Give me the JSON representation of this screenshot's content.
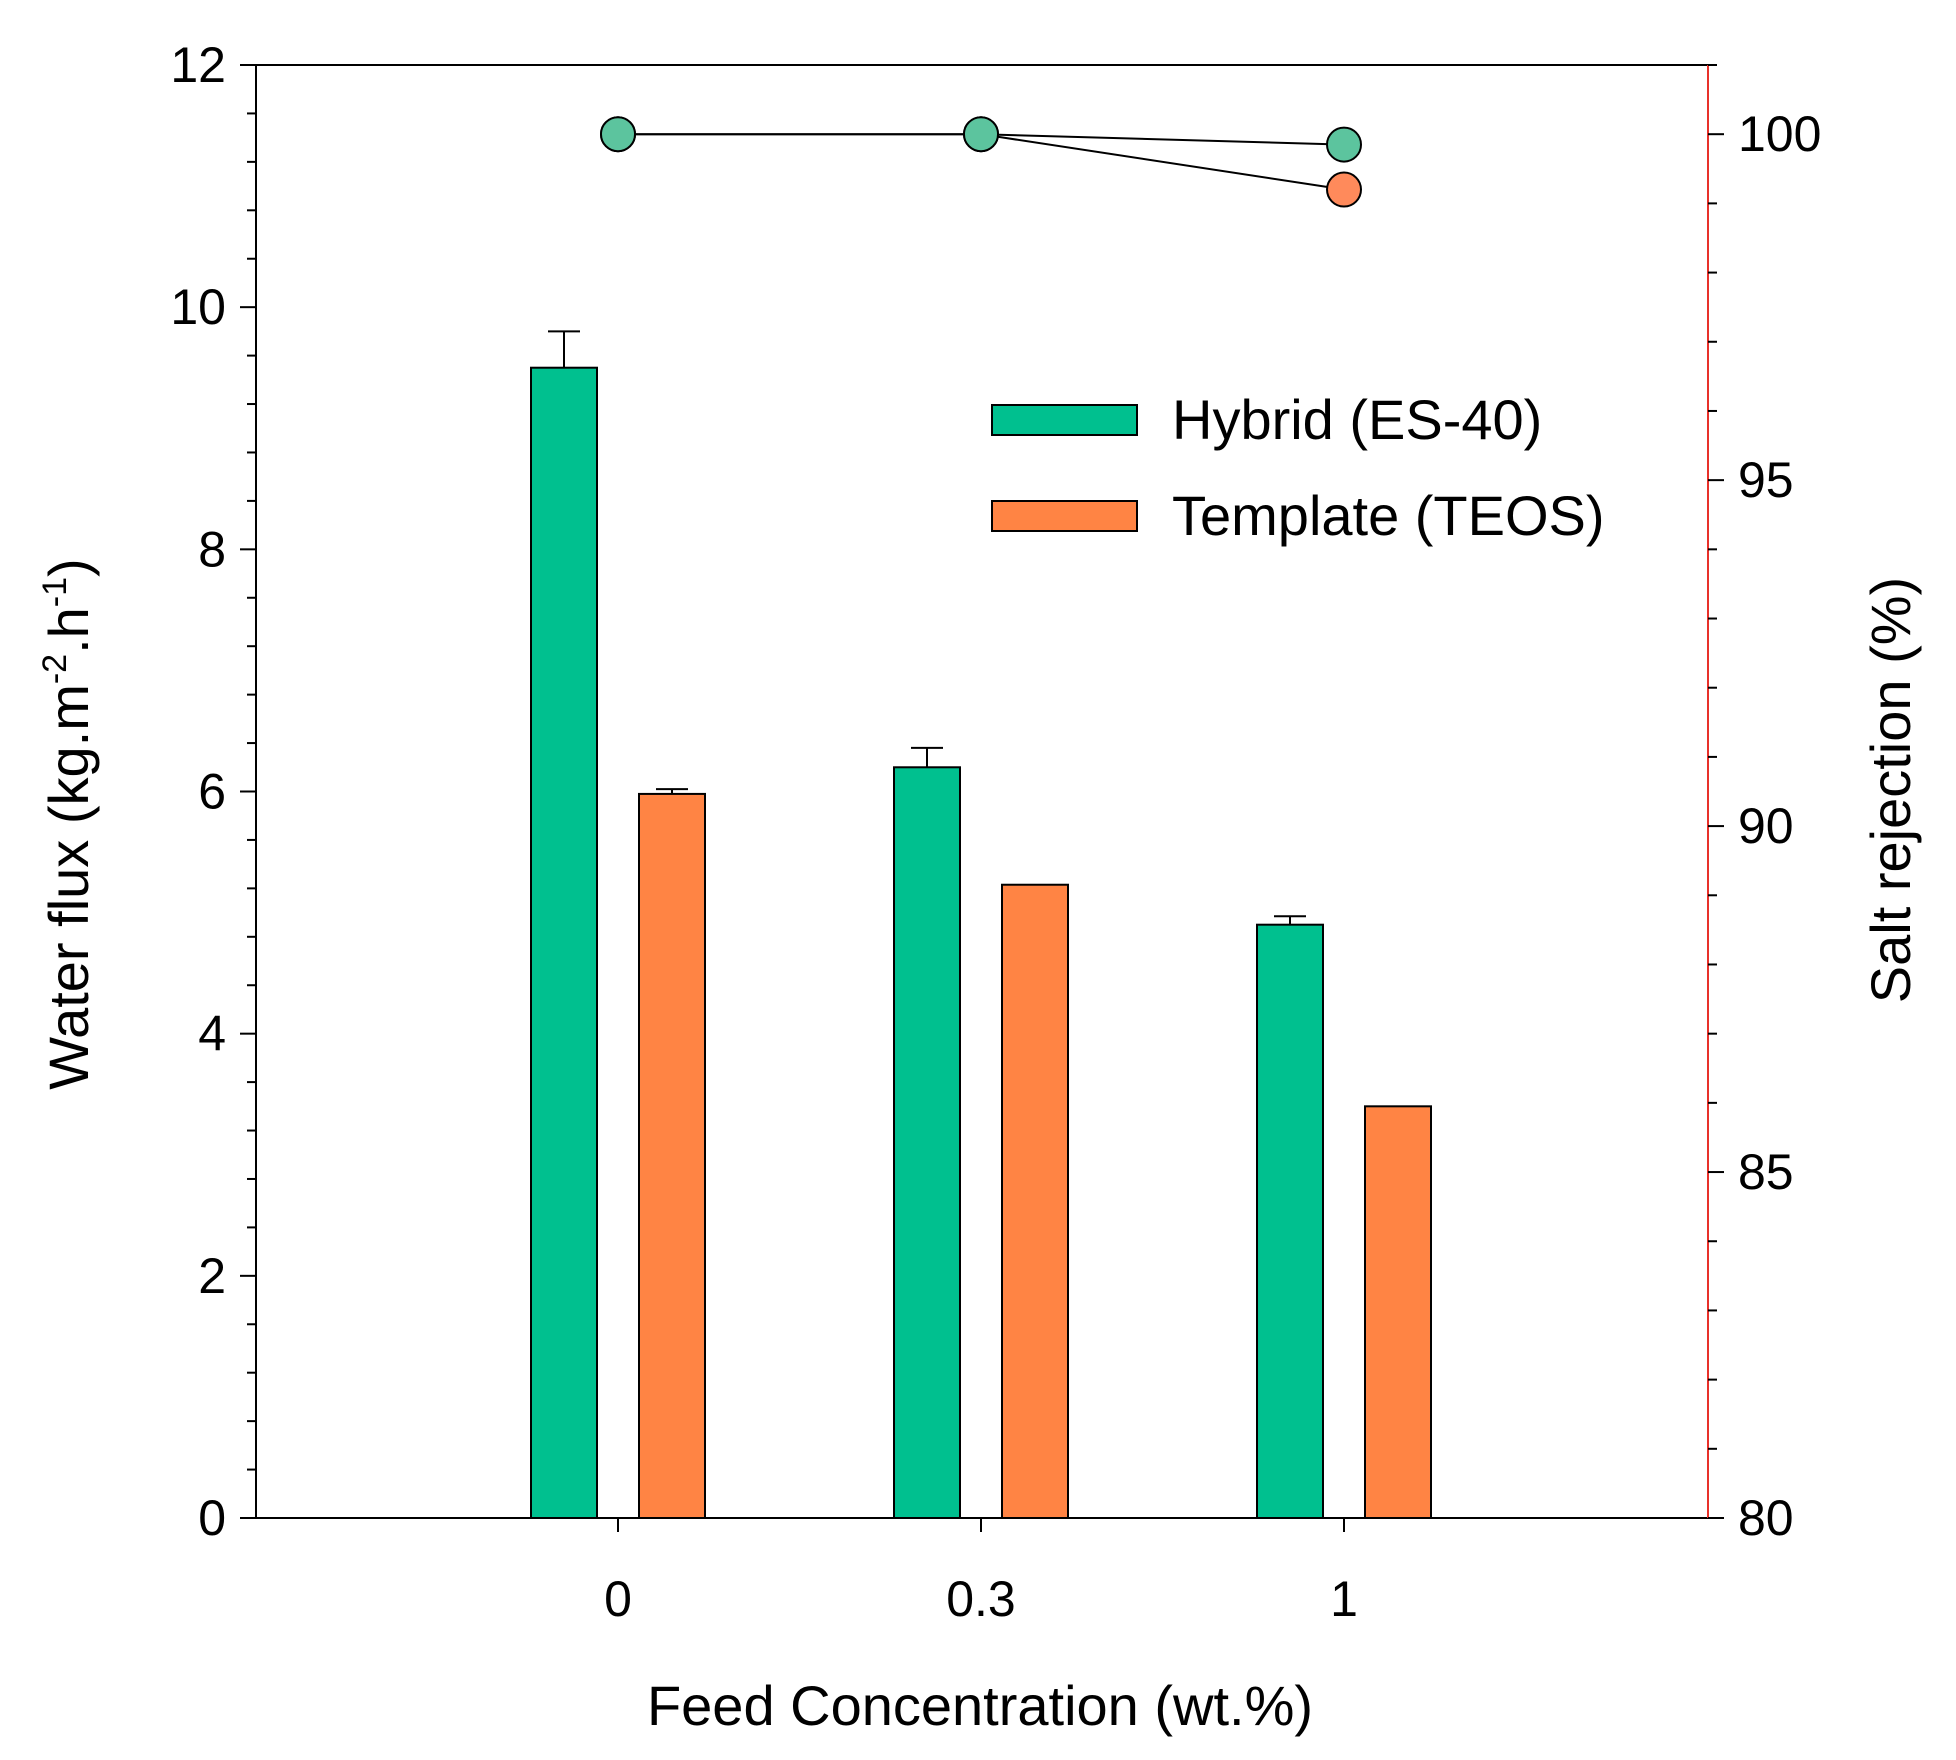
{
  "chart_data": {
    "type": "bar",
    "categories": [
      "0",
      "0.3",
      "1"
    ],
    "xlabel": "Feed Concentration (wt.%)",
    "ylabel": {
      "prefix": "Water flux (kg.m",
      "sup1": "-2",
      "mid": ".h",
      "sup2": "-1",
      "suffix": ")"
    },
    "y2label": "Salt rejection (%)",
    "ylim": [
      0,
      12
    ],
    "y2lim": [
      80,
      101
    ],
    "yticks": [
      "0",
      "2",
      "4",
      "6",
      "8",
      "10",
      "12"
    ],
    "y2ticks": [
      "80",
      "85",
      "90",
      "95",
      "100"
    ],
    "legend_position": "top-right",
    "colors": {
      "hybrid": "#00C08F",
      "template": "#FF8444",
      "hybrid_marker": "#5CC49E",
      "template_marker": "#FF8A5B",
      "right_axis": "#E8312A"
    },
    "series": [
      {
        "name": "Hybrid (ES-40)",
        "color_key": "hybrid",
        "values": [
          9.5,
          6.2,
          4.9
        ],
        "errors": [
          0.3,
          0.16,
          0.07
        ]
      },
      {
        "name": "Template (TEOS)",
        "color_key": "template",
        "values": [
          5.98,
          5.23,
          3.4
        ],
        "errors": [
          0.04,
          0,
          0
        ]
      }
    ],
    "rejection_series": [
      {
        "series": "Hybrid (ES-40)",
        "color_key": "hybrid_marker",
        "values": [
          100,
          100,
          99.85
        ]
      },
      {
        "series": "Template (TEOS)",
        "color_key": "template_marker",
        "values": [
          100,
          100,
          99.2
        ]
      }
    ]
  }
}
